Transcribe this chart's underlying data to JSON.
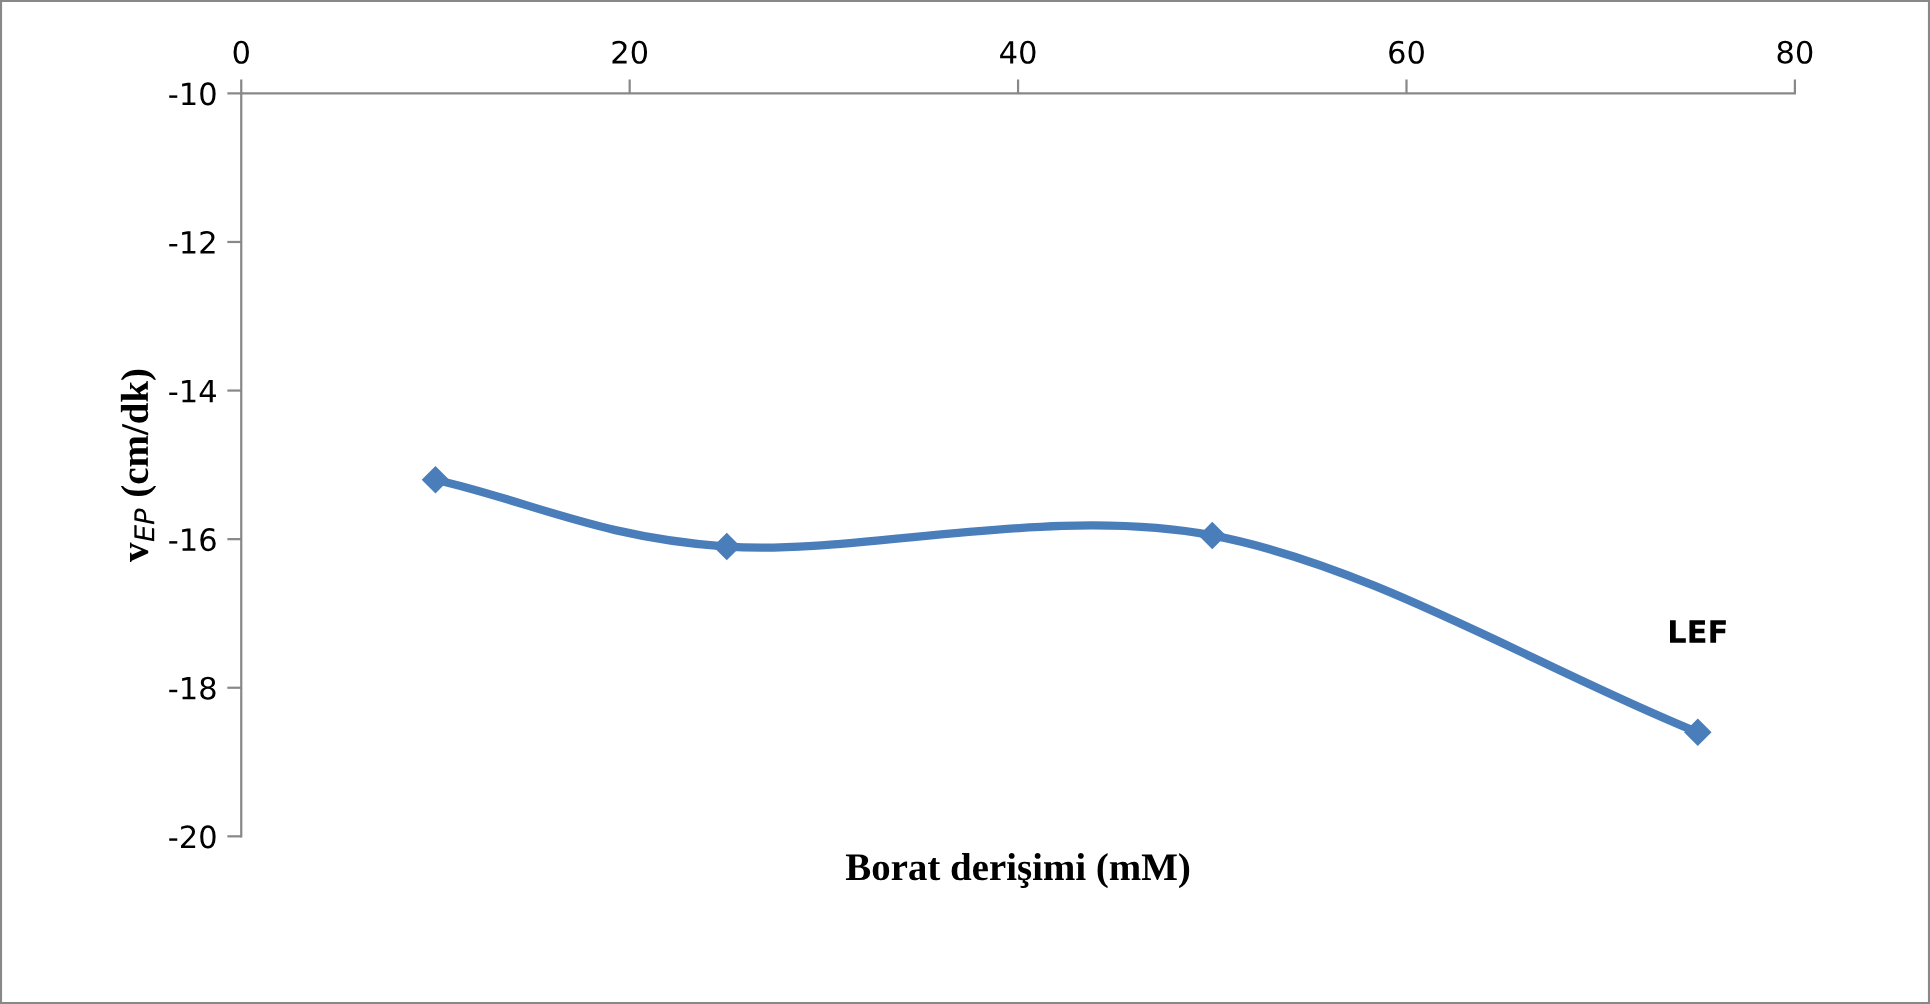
{
  "chart_data": {
    "type": "line",
    "xlabel": "Borat derişimi (mM)",
    "ylabel": "v$_{EP}$ (cm/dk)",
    "x": [
      10,
      25,
      50,
      75
    ],
    "series": [
      {
        "name": "LEF",
        "color": "#4a7ebb",
        "values": [
          -15.2,
          -16.1,
          -15.95,
          -18.6
        ]
      }
    ],
    "xlim": [
      0,
      80
    ],
    "xticks": [
      0,
      20,
      40,
      60,
      80
    ],
    "ylim": [
      -20,
      -10
    ],
    "yticks": [
      -20,
      -18,
      -16,
      -14,
      -12,
      -10
    ],
    "grid": false,
    "marker": "diamond",
    "line_style": "solid"
  }
}
